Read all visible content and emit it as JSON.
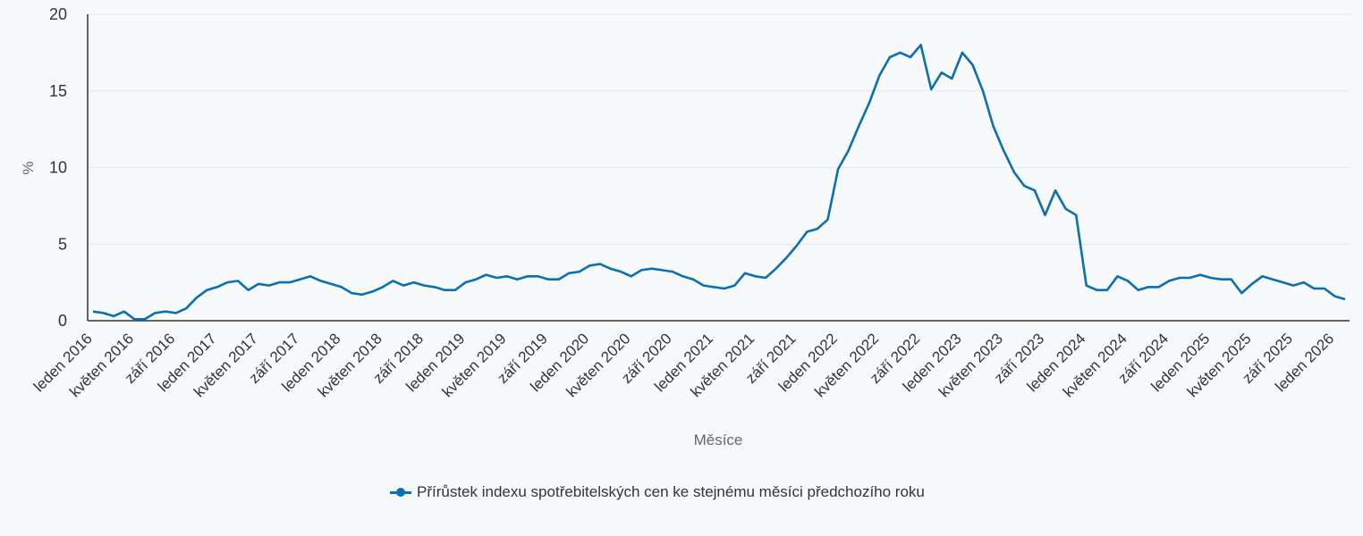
{
  "chart_data": {
    "type": "line",
    "title": "",
    "xlabel": "Měsíce",
    "ylabel": "%",
    "ylim": [
      0,
      20
    ],
    "yticks": [
      0,
      5,
      10,
      15,
      20
    ],
    "grid": true,
    "legend_position": "bottom",
    "x_tick_labels": [
      "leden 2016",
      "květen 2016",
      "září 2016",
      "leden 2017",
      "květen 2017",
      "září 2017",
      "leden 2018",
      "květen 2018",
      "září 2018",
      "leden 2019",
      "květen 2019",
      "září 2019",
      "leden 2020",
      "květen 2020",
      "září 2020",
      "leden 2021",
      "květen 2021",
      "září 2021",
      "leden 2022",
      "květen 2022",
      "září 2022",
      "leden 2023",
      "květen 2023",
      "září 2023",
      "leden 2024",
      "květen 2024",
      "září 2024",
      "leden 2025",
      "květen 2025",
      "září 2025",
      "leden 2026"
    ],
    "x_start": "leden 2016",
    "x_end": "únor 2026",
    "series": [
      {
        "name": "Přírůstek indexu spotřebitelských cen ke stejnému měsíci předchozího roku",
        "color": "#0b6fb3",
        "values": [
          0.6,
          0.5,
          0.3,
          0.6,
          0.1,
          0.1,
          0.5,
          0.6,
          0.5,
          0.8,
          1.5,
          2.0,
          2.2,
          2.5,
          2.6,
          2.0,
          2.4,
          2.3,
          2.5,
          2.5,
          2.7,
          2.9,
          2.6,
          2.4,
          2.2,
          1.8,
          1.7,
          1.9,
          2.2,
          2.6,
          2.3,
          2.5,
          2.3,
          2.2,
          2.0,
          2.0,
          2.5,
          2.7,
          3.0,
          2.8,
          2.9,
          2.7,
          2.9,
          2.9,
          2.7,
          2.7,
          3.1,
          3.2,
          3.6,
          3.7,
          3.4,
          3.2,
          2.9,
          3.3,
          3.4,
          3.3,
          3.2,
          2.9,
          2.7,
          2.3,
          2.2,
          2.1,
          2.3,
          3.1,
          2.9,
          2.8,
          3.4,
          4.1,
          4.9,
          5.8,
          6.0,
          6.6,
          9.9,
          11.1,
          12.7,
          14.2,
          16.0,
          17.2,
          17.5,
          17.2,
          18.0,
          15.1,
          16.2,
          15.8,
          17.5,
          16.7,
          15.0,
          12.7,
          11.1,
          9.7,
          8.8,
          8.5,
          6.9,
          8.5,
          7.3,
          6.9,
          2.3,
          2.0,
          2.0,
          2.9,
          2.6,
          2.0,
          2.2,
          2.2,
          2.6,
          2.8,
          2.8,
          3.0,
          2.8,
          2.7,
          2.7,
          1.8,
          2.4,
          2.9,
          2.7,
          2.5,
          2.3,
          2.5,
          2.1,
          2.1,
          1.6,
          1.4
        ]
      }
    ]
  },
  "legend": {
    "label": "Přírůstek indexu spotřebitelských cen ke stejnému měsíci předchozího roku"
  },
  "axes": {
    "x_title": "Měsíce",
    "y_title": "%"
  }
}
